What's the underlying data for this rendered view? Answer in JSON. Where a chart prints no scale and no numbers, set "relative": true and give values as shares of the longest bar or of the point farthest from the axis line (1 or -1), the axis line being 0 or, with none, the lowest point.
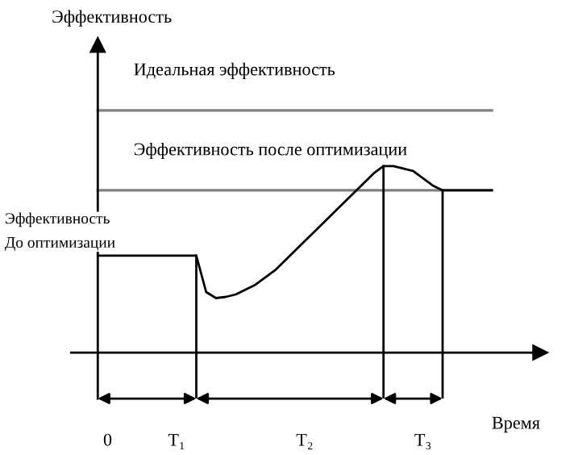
{
  "chart_data": {
    "type": "line",
    "relative": true,
    "ylabel": "Эффективность",
    "xlabel": "Время",
    "categories": [
      null,
      "0",
      null,
      null,
      null,
      null,
      null,
      null,
      "T₁",
      null,
      null,
      null,
      null,
      null,
      null,
      null,
      null,
      null,
      null,
      null,
      null,
      "T₂",
      null,
      null,
      null,
      null,
      null,
      null,
      null,
      null,
      null,
      null,
      null,
      "T₃",
      null,
      null,
      null,
      null,
      null,
      null,
      null
    ],
    "series": [
      {
        "name": "Идеальная эффективность",
        "color": "#808080",
        "values": [
          1,
          1,
          1,
          1,
          1,
          1,
          1,
          1,
          1,
          1,
          1,
          1,
          1,
          1,
          1,
          1,
          1,
          1,
          1,
          1,
          1,
          1,
          1,
          1,
          1,
          1,
          1,
          1,
          1,
          1,
          1,
          1,
          1,
          1,
          1,
          1,
          1,
          1,
          1,
          1,
          1
        ]
      },
      {
        "name": "Эффективность после оптимизации",
        "color": "#808080",
        "values": [
          0.67,
          0.67,
          0.67,
          0.67,
          0.67,
          0.67,
          0.67,
          0.67,
          0.67,
          0.67,
          0.67,
          0.67,
          0.67,
          0.67,
          0.67,
          0.67,
          0.67,
          0.67,
          0.67,
          0.67,
          0.67,
          0.67,
          0.67,
          0.67,
          0.67,
          0.67,
          0.67,
          0.67,
          0.67,
          0.67,
          0.67,
          0.67,
          0.67,
          0.67,
          0.67,
          0.67,
          0.67,
          0.67,
          0.67,
          0.67,
          0.67
        ]
      },
      {
        "color": "#000000",
        "values": [
          0.4,
          0.4,
          0.4,
          0.4,
          0.4,
          0.4,
          0.4,
          0.4,
          0.4,
          0.4,
          0.4,
          0.25,
          0.225,
          0.23,
          0.24,
          0.26,
          0.28,
          0.31,
          0.34,
          0.38,
          0.42,
          0.46,
          0.5,
          0.54,
          0.58,
          0.62,
          0.66,
          0.7,
          0.74,
          0.77,
          0.77,
          0.76,
          0.75,
          0.72,
          0.69,
          0.67,
          0.67,
          0.67,
          0.67,
          0.67,
          0.67
        ]
      }
    ],
    "annotations": [
      "Эффективность\nДо оптимизации"
    ],
    "grid": false,
    "legend": false,
    "marker": "none",
    "line_style": "solid"
  }
}
